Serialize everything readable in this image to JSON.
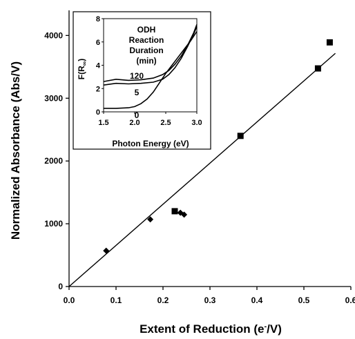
{
  "chart_data": [
    {
      "type": "scatter",
      "title": "",
      "xlabel_main": "Extent of Reduction (e",
      "xlabel_sup": "-",
      "xlabel_tail": "/V)",
      "ylabel": "Normalized Absorbance (Abs/V)",
      "xlim": [
        0.0,
        0.6
      ],
      "ylim": [
        0,
        4400
      ],
      "xticks": [
        "0.0",
        "0.1",
        "0.2",
        "0.3",
        "0.4",
        "0.5",
        "0.6"
      ],
      "yticks": [
        "0",
        "1000",
        "2000",
        "3000",
        "4000"
      ],
      "grid": false,
      "series": [
        {
          "marker": "diamond",
          "x": [
            0.079,
            0.173,
            0.237,
            0.245
          ],
          "y": [
            570,
            1070,
            1175,
            1145
          ]
        },
        {
          "marker": "square",
          "x": [
            0.225,
            0.365,
            0.53,
            0.555
          ],
          "y": [
            1200,
            2400,
            3475,
            3890
          ]
        },
        {
          "marker": "line",
          "x": [
            0.0,
            0.567
          ],
          "y": [
            0,
            3715
          ]
        }
      ]
    },
    {
      "type": "line",
      "title": "",
      "xlabel": "Photon Energy (eV)",
      "ylabel_main": "F(R",
      "ylabel_sub": "∞",
      "ylabel_tail": ")",
      "xlim": [
        1.5,
        3.0
      ],
      "ylim": [
        0,
        8
      ],
      "xticks": [
        "1.5",
        "2.0",
        "2.5",
        "3.0"
      ],
      "yticks": [
        "0",
        "2",
        "4",
        "6",
        "8"
      ],
      "legend_title": [
        "ODH",
        "Reaction",
        "Duration",
        "(min)"
      ],
      "series": [
        {
          "name": "120",
          "x": [
            1.5,
            1.7,
            1.9,
            2.1,
            2.3,
            2.45,
            2.55,
            2.65,
            2.75,
            2.85,
            2.95,
            3.0
          ],
          "y": [
            2.6,
            2.8,
            2.7,
            2.75,
            2.9,
            3.2,
            3.55,
            4.1,
            4.8,
            5.7,
            6.8,
            7.5
          ]
        },
        {
          "name": "5",
          "x": [
            1.5,
            1.7,
            1.9,
            2.1,
            2.3,
            2.45,
            2.55,
            2.65,
            2.75,
            2.85,
            2.95,
            3.0
          ],
          "y": [
            2.3,
            2.45,
            2.4,
            2.45,
            2.55,
            2.8,
            3.2,
            3.8,
            4.6,
            5.6,
            6.7,
            7.3
          ]
        },
        {
          "name": "0",
          "x": [
            1.5,
            1.7,
            1.9,
            2.0,
            2.1,
            2.2,
            2.3,
            2.4,
            2.5,
            2.6,
            2.7,
            2.8,
            2.9,
            3.0
          ],
          "y": [
            0.3,
            0.3,
            0.35,
            0.45,
            0.7,
            1.1,
            1.7,
            2.5,
            3.3,
            4.0,
            4.7,
            5.4,
            6.1,
            6.9
          ]
        }
      ]
    }
  ]
}
